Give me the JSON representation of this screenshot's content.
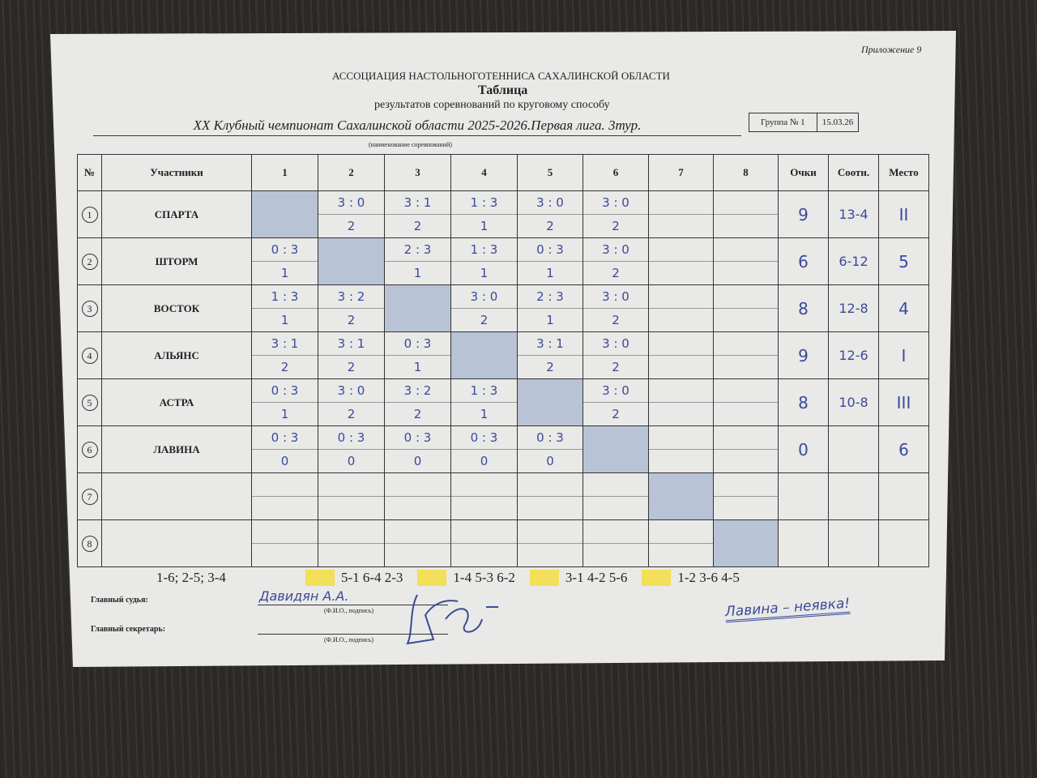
{
  "header": {
    "appendix": "Приложение 9",
    "association": "АССОЦИАЦИЯ НАСТОЛЬНОГОТЕННИСА САХАЛИНСКОЙ ОБЛАСТИ",
    "title": "Таблица",
    "subtitle": "результатов соревнований по круговому способу",
    "competition": "XX Клубный чемпионат Сахалинской области 2025-2026.Первая лига. 3тур.",
    "competition_caption": "(наименование соревнований)",
    "group": "Группа № 1",
    "date": "15.03.26"
  },
  "table": {
    "columns": {
      "no": "№",
      "participants": "Участники",
      "opponents": [
        "1",
        "2",
        "3",
        "4",
        "5",
        "6",
        "7",
        "8"
      ],
      "points": "Очки",
      "ratio": "Соотн.",
      "place": "Место"
    },
    "rows": [
      {
        "no": "1",
        "name": "СПАРТА",
        "results": [
          null,
          [
            "3 : 0",
            "2"
          ],
          [
            "3 : 1",
            "2"
          ],
          [
            "1 : 3",
            "1"
          ],
          [
            "3 : 0",
            "2"
          ],
          [
            "3 : 0",
            "2"
          ],
          null,
          null
        ],
        "points": "9",
        "ratio": "13-4",
        "place": "II"
      },
      {
        "no": "2",
        "name": "ШТОРМ",
        "results": [
          [
            "0 : 3",
            "1"
          ],
          null,
          [
            "2 : 3",
            "1"
          ],
          [
            "1 : 3",
            "1"
          ],
          [
            "0 : 3",
            "1"
          ],
          [
            "3 : 0",
            "2"
          ],
          null,
          null
        ],
        "points": "6",
        "ratio": "6-12",
        "place": "5"
      },
      {
        "no": "3",
        "name": "ВОСТОК",
        "results": [
          [
            "1 : 3",
            "1"
          ],
          [
            "3 : 2",
            "2"
          ],
          null,
          [
            "3 : 0",
            "2"
          ],
          [
            "2 : 3",
            "1"
          ],
          [
            "3 : 0",
            "2"
          ],
          null,
          null
        ],
        "points": "8",
        "ratio": "12-8",
        "place": "4"
      },
      {
        "no": "4",
        "name": "АЛЬЯНС",
        "results": [
          [
            "3 : 1",
            "2"
          ],
          [
            "3 : 1",
            "2"
          ],
          [
            "0 : 3",
            "1"
          ],
          null,
          [
            "3 : 1",
            "2"
          ],
          [
            "3 : 0",
            "2"
          ],
          null,
          null
        ],
        "points": "9",
        "ratio": "12-6",
        "place": "I"
      },
      {
        "no": "5",
        "name": "АСТРА",
        "results": [
          [
            "0 : 3",
            "1"
          ],
          [
            "3 : 0",
            "2"
          ],
          [
            "3 : 2",
            "2"
          ],
          [
            "1 : 3",
            "1"
          ],
          null,
          [
            "3 : 0",
            "2"
          ],
          null,
          null
        ],
        "points": "8",
        "ratio": "10-8",
        "place": "III"
      },
      {
        "no": "6",
        "name": "ЛАВИНА",
        "results": [
          [
            "0 : 3",
            "0"
          ],
          [
            "0 : 3",
            "0"
          ],
          [
            "0 : 3",
            "0"
          ],
          [
            "0 : 3",
            "0"
          ],
          [
            "0 : 3",
            "0"
          ],
          null,
          null,
          null
        ],
        "points": "0",
        "ratio": "",
        "place": "6"
      },
      {
        "no": "7",
        "name": "",
        "results": [
          null,
          null,
          null,
          null,
          null,
          null,
          null,
          null
        ],
        "points": "",
        "ratio": "",
        "place": ""
      },
      {
        "no": "8",
        "name": "",
        "results": [
          null,
          null,
          null,
          null,
          null,
          null,
          null,
          null
        ],
        "points": "",
        "ratio": "",
        "place": ""
      }
    ]
  },
  "schedule": [
    "1-6; 2-5; 3-4",
    "5-1 6-4 2-3",
    "1-4 5-3 6-2",
    "3-1 4-2 5-6",
    "1-2 3-6 4-5"
  ],
  "footer": {
    "judge_label": "Главный судья:",
    "judge_name": "Давидян А.А.",
    "secretary_label": "Главный секретарь:",
    "fio_caption": "(Ф.И.О., подпись)",
    "note": "Лавина – неявка!"
  },
  "colors": {
    "diagonal": "#b9c3d6",
    "ink": "#3a4a9a",
    "schedule_marker": "#f2df5a"
  }
}
